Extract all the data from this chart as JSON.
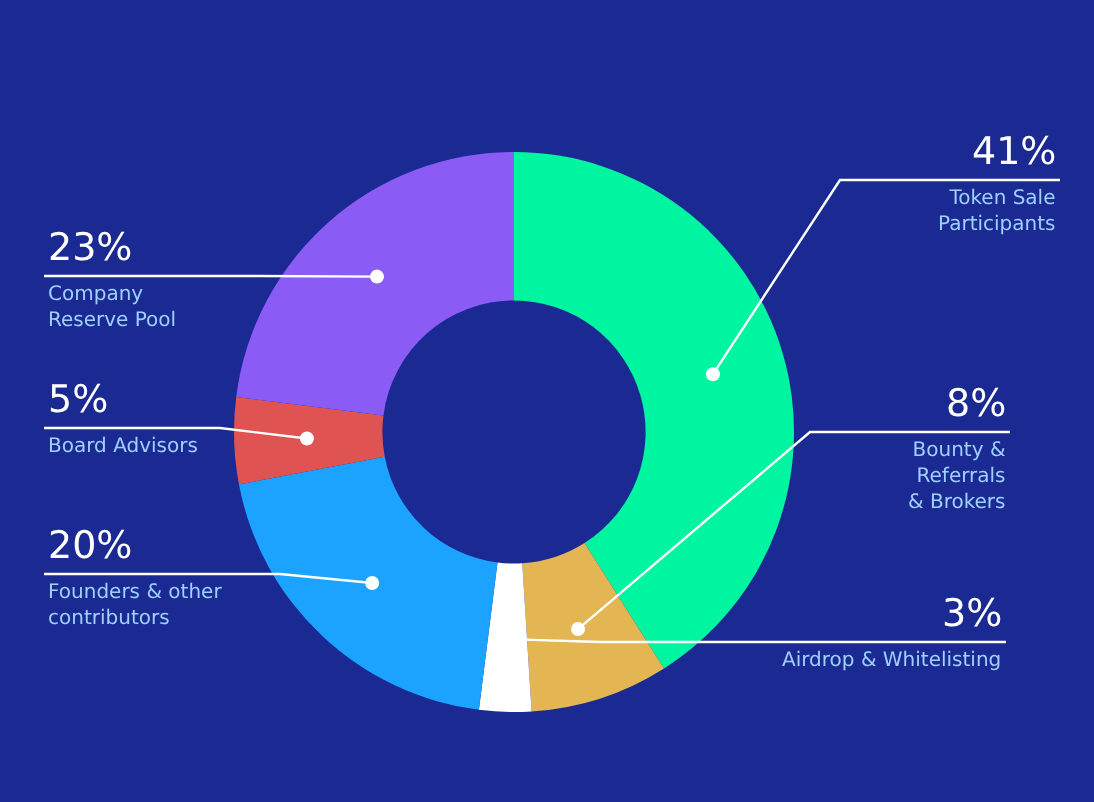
{
  "chart_data": {
    "type": "donut",
    "categories": [
      "Token Sale Participants",
      "Bounty & Referrals & Brokers",
      "Airdrop & Whitelisting",
      "Founders & other contributors",
      "Board Advisors",
      "Company Reserve Pool"
    ],
    "values": [
      41,
      8,
      3,
      20,
      5,
      23
    ],
    "colors": [
      "#00f5a0",
      "#e3b553",
      "#ffffff",
      "#1ba3ff",
      "#e05353",
      "#8a5cf5"
    ],
    "value_labels": [
      "41%",
      "8%",
      "3%",
      "20%",
      "5%",
      "23%"
    ]
  }
}
